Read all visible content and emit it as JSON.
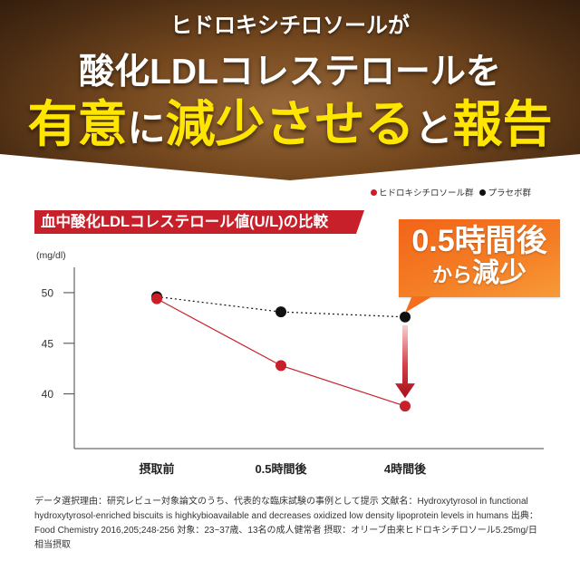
{
  "banner": {
    "line1": "ヒドロキシチロソールが",
    "line2": "酸化LDLコレステロールを",
    "line3": {
      "emph1": "有意",
      "plain1": "に",
      "emph2": "減少させる",
      "plain2": "と",
      "emph3": "報告"
    }
  },
  "callout": {
    "line1": "0.5時間後",
    "line2_small": "から",
    "line2_large": "減少"
  },
  "chart_data": {
    "type": "line",
    "title": "血中酸化LDLコレステロール値(U/L)の比較",
    "ylabel": "(mg/dl)",
    "xlabel": "",
    "categories": [
      "摂取前",
      "0.5時間後",
      "4時間後"
    ],
    "yticks": [
      40,
      45,
      50
    ],
    "ylim": [
      34.6,
      52.5
    ],
    "grid": false,
    "legend_position": "top-right",
    "series": [
      {
        "name": "ヒドロキシチロソール群",
        "color": "#c8202a",
        "line_style": "solid",
        "values": [
          49.4,
          42.8,
          38.8
        ]
      },
      {
        "name": "プラセボ群",
        "color": "#111111",
        "line_style": "dotted",
        "values": [
          49.6,
          48.1,
          47.6
        ]
      }
    ]
  },
  "footnote": "データ選択理由：研究レビュー対象論文のうち、代表的な臨床試験の事例として提示 文献名：Hydroxytyrosol in functional hydroxytyrosol-enriched biscuits is highkybioavailable and decreases oxidized low density lipoprotein levels in humans 出典：Food Chemistry 2016,205;248-256 対象：23~37歳、13名の成人健常者 摂取：オリーブ由来ヒドロキシチロソール5.25mg/日相当摂取",
  "colors": {
    "banner_brown": "#76491f",
    "headline_yellow": "#ffe600",
    "label_red": "#c8202a",
    "callout_orange": "#f47d24",
    "arrow_red": "#a80f18"
  }
}
